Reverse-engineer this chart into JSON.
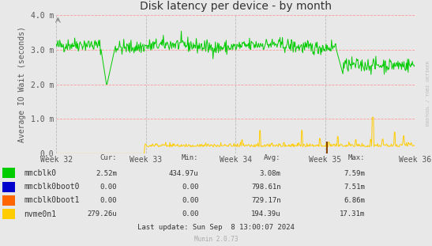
{
  "title": "Disk latency per device - by month",
  "ylabel": "Average IO Wait (seconds)",
  "background_color": "#e8e8e8",
  "plot_bg_color": "#e8e8e8",
  "ylim": [
    0,
    0.004
  ],
  "yticks": [
    0.0,
    0.001,
    0.002,
    0.003,
    0.004
  ],
  "ytick_labels": [
    "0.0",
    "1.0 m",
    "2.0 m",
    "3.0 m",
    "4.0 m"
  ],
  "week_labels": [
    "Week 32",
    "Week 33",
    "Week 34",
    "Week 35",
    "Week 36"
  ],
  "legend_entries": [
    {
      "label": "mmcblk0",
      "color": "#00cc00"
    },
    {
      "label": "mmcblk0boot0",
      "color": "#0000cc"
    },
    {
      "label": "mmcblk0boot1",
      "color": "#ff6600"
    },
    {
      "label": "nvme0n1",
      "color": "#ffcc00"
    }
  ],
  "table_headers": [
    "Cur:",
    "Min:",
    "Avg:",
    "Max:"
  ],
  "table_data": [
    [
      "2.52m",
      "434.97u",
      "3.08m",
      "7.59m"
    ],
    [
      "0.00",
      "0.00",
      "798.61n",
      "7.51m"
    ],
    [
      "0.00",
      "0.00",
      "729.17n",
      "6.86m"
    ],
    [
      "279.26u",
      "0.00",
      "194.39u",
      "17.31m"
    ]
  ],
  "last_update": "Last update: Sun Sep  8 13:00:07 2024",
  "watermark": "Munin 2.0.73",
  "rrdtool_text": "RRDTOOL / TOBI OETIKER",
  "title_fontsize": 10,
  "axis_fontsize": 7,
  "legend_fontsize": 7,
  "table_fontsize": 6.5
}
